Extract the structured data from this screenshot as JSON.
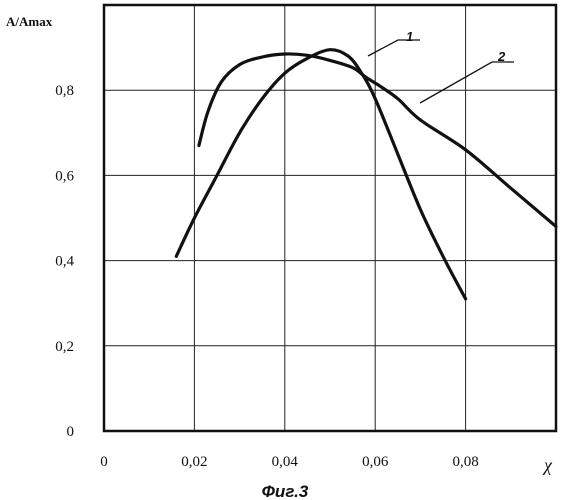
{
  "chart_data": {
    "type": "line",
    "ylabel": "A/Amax",
    "xlabel": "χ",
    "caption": "Фиг.3",
    "xlim": [
      0,
      0.1
    ],
    "ylim": [
      0,
      1.0
    ],
    "grid": true,
    "x_ticks": [
      {
        "value": 0,
        "label": "0"
      },
      {
        "value": 0.02,
        "label": "0,02"
      },
      {
        "value": 0.04,
        "label": "0,04"
      },
      {
        "value": 0.06,
        "label": "0,06"
      },
      {
        "value": 0.08,
        "label": "0,08"
      }
    ],
    "y_ticks": [
      {
        "value": 0,
        "label": "0"
      },
      {
        "value": 0.2,
        "label": "0,2"
      },
      {
        "value": 0.4,
        "label": "0,4"
      },
      {
        "value": 0.6,
        "label": "0,6"
      },
      {
        "value": 0.8,
        "label": "0,8"
      }
    ],
    "series": [
      {
        "name": "1",
        "color": "#111111",
        "points": [
          [
            0.021,
            0.67
          ],
          [
            0.023,
            0.75
          ],
          [
            0.026,
            0.82
          ],
          [
            0.03,
            0.86
          ],
          [
            0.035,
            0.878
          ],
          [
            0.04,
            0.885
          ],
          [
            0.045,
            0.882
          ],
          [
            0.05,
            0.87
          ],
          [
            0.055,
            0.853
          ],
          [
            0.058,
            0.83
          ],
          [
            0.061,
            0.81
          ],
          [
            0.065,
            0.78
          ],
          [
            0.07,
            0.73
          ],
          [
            0.08,
            0.66
          ],
          [
            0.09,
            0.57
          ],
          [
            0.1,
            0.48
          ]
        ]
      },
      {
        "name": "2",
        "color": "#111111",
        "points": [
          [
            0.016,
            0.41
          ],
          [
            0.02,
            0.5
          ],
          [
            0.025,
            0.6
          ],
          [
            0.03,
            0.7
          ],
          [
            0.035,
            0.78
          ],
          [
            0.04,
            0.84
          ],
          [
            0.045,
            0.875
          ],
          [
            0.05,
            0.895
          ],
          [
            0.054,
            0.88
          ],
          [
            0.057,
            0.84
          ],
          [
            0.06,
            0.78
          ],
          [
            0.065,
            0.65
          ],
          [
            0.07,
            0.52
          ],
          [
            0.075,
            0.41
          ],
          [
            0.08,
            0.31
          ]
        ]
      }
    ]
  }
}
